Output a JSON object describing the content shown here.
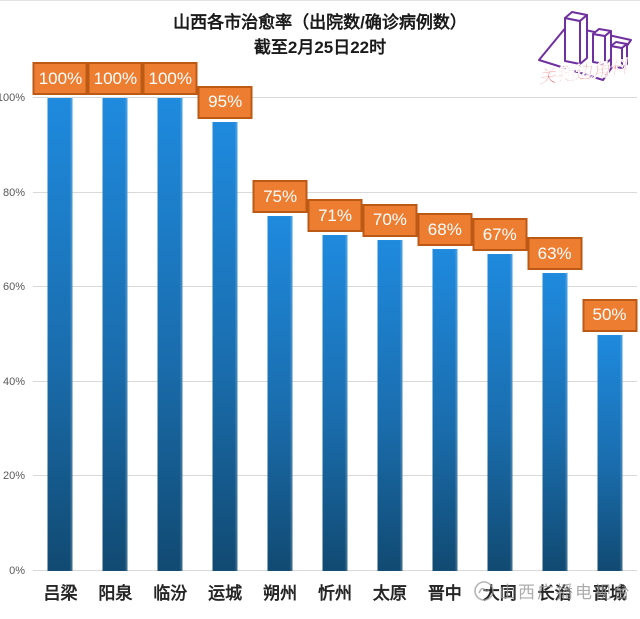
{
  "title": {
    "line1": "山西各市治愈率（出院数/确诊病例数）",
    "line2": "截至2月25日22时"
  },
  "top_watermark": {
    "text": "关键边角料"
  },
  "bottom_watermark": {
    "text": "山西广播电视台"
  },
  "chart_data": {
    "type": "bar",
    "title": "山西各市治愈率（出院数/确诊病例数）截至2月25日22时",
    "categories": [
      "吕梁",
      "阳泉",
      "临汾",
      "运城",
      "朔州",
      "忻州",
      "太原",
      "晋中",
      "大同",
      "长治",
      "晋城"
    ],
    "values": [
      100,
      100,
      100,
      95,
      75,
      71,
      70,
      68,
      67,
      63,
      50
    ],
    "labels": [
      "100%",
      "100%",
      "100%",
      "95%",
      "75%",
      "71%",
      "70%",
      "68%",
      "67%",
      "63%",
      "50%"
    ],
    "xlabel": "",
    "ylabel": "",
    "ylim": [
      0,
      100
    ],
    "yticks": [
      "0%",
      "20%",
      "40%",
      "60%",
      "80%",
      "100%"
    ],
    "grid": true,
    "legend": "none",
    "colors": {
      "bar_top": "#1f8ade",
      "bar_bottom": "#114a72",
      "data_label_bg": "#ed7d31",
      "data_label_border": "#bc5a15",
      "gridline": "#d9d9d9",
      "axis_label": "#595959",
      "logo_purple": "#7030a0",
      "logo_red": "#e02f35"
    }
  }
}
